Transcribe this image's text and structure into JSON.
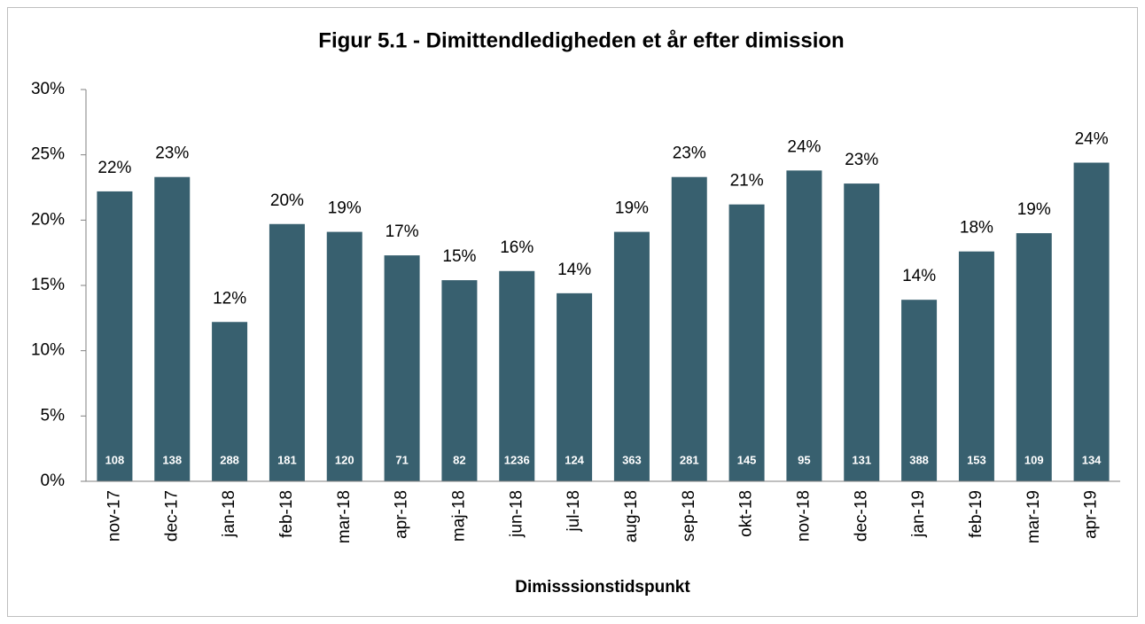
{
  "chart_data": {
    "type": "bar",
    "title": "Figur 5.1 - Dimittendledigheden et år efter dimission",
    "x_label": "Dimisssionstidspunkt",
    "categories": [
      "nov-17",
      "dec-17",
      "jan-18",
      "feb-18",
      "mar-18",
      "apr-18",
      "maj-18",
      "jun-18",
      "jul-18",
      "aug-18",
      "sep-18",
      "okt-18",
      "nov-18",
      "dec-18",
      "jan-19",
      "feb-19",
      "mar-19",
      "apr-19"
    ],
    "values": [
      22.2,
      23.3,
      12.2,
      19.7,
      19.1,
      17.3,
      15.4,
      16.1,
      14.4,
      19.1,
      23.3,
      21.2,
      23.8,
      22.8,
      13.9,
      17.6,
      19.0,
      24.4
    ],
    "value_labels": [
      "22%",
      "23%",
      "12%",
      "20%",
      "19%",
      "17%",
      "15%",
      "16%",
      "14%",
      "19%",
      "23%",
      "21%",
      "24%",
      "23%",
      "14%",
      "18%",
      "19%",
      "24%"
    ],
    "counts": [
      108,
      138,
      288,
      181,
      120,
      71,
      82,
      1236,
      124,
      363,
      281,
      145,
      95,
      131,
      388,
      153,
      109,
      134
    ],
    "color": "#38606f",
    "ylim": [
      0,
      30
    ],
    "yticks": [
      {
        "value": 0,
        "label": "0%"
      },
      {
        "value": 5,
        "label": "5%"
      },
      {
        "value": 10,
        "label": "10%"
      },
      {
        "value": 15,
        "label": "15%"
      },
      {
        "value": 20,
        "label": "20%"
      },
      {
        "value": 25,
        "label": "25%"
      },
      {
        "value": 30,
        "label": "30%"
      }
    ],
    "grid": false
  }
}
